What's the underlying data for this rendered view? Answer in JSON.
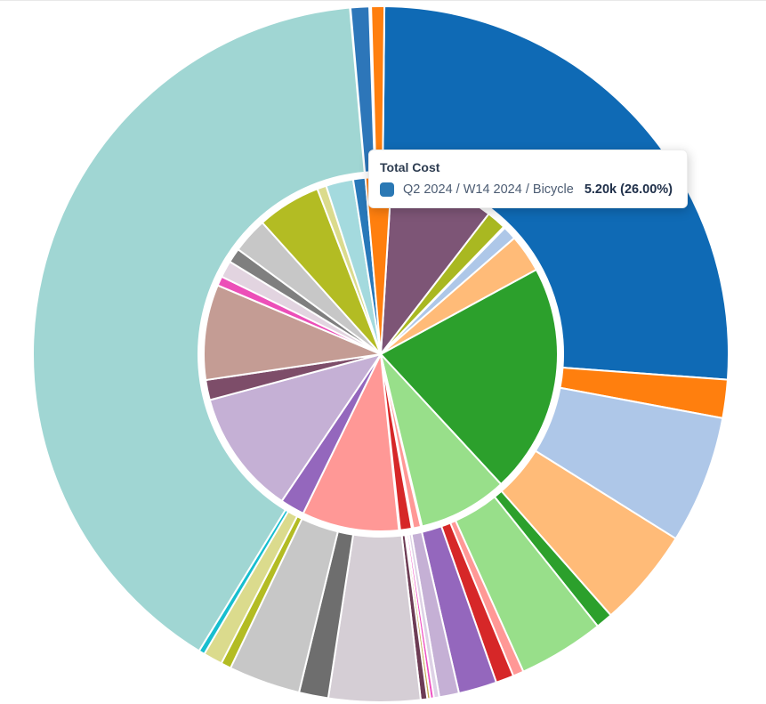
{
  "tooltip": {
    "title": "Total Cost",
    "series_path": "Q2 2024 / W14 2024 / Bicycle",
    "value_text": "5.20k (26.00%)",
    "swatch_color": "#2a78b4"
  },
  "chart_data": {
    "type": "pie",
    "subtype": "sunburst-two-ring",
    "title": "Total Cost",
    "legend": "none",
    "data_labels": "none",
    "hovered_segment": {
      "ring": "outer",
      "id": "bicycle-q2-w14",
      "path": "Q2 2024 / W14 2024 / Bicycle",
      "value": "5.20k",
      "percent": "26.00%"
    },
    "angle_convention": "degrees clockwise from 12 o'clock",
    "rings": {
      "outer": {
        "segments": [
          {
            "id": "bicycle-q2-w14",
            "color": "#0f6ab5",
            "start_deg": 0.6,
            "end_deg": 94.2,
            "pct": 26.0
          },
          {
            "id": "outer-orange",
            "color": "#ff7f0e",
            "start_deg": 94.2,
            "end_deg": 100.6,
            "pct": 1.8
          },
          {
            "id": "outer-steel-blue",
            "color": "#aec7e8",
            "start_deg": 100.6,
            "end_deg": 122.0,
            "pct": 5.9
          },
          {
            "id": "outer-peach",
            "color": "#ffbb78",
            "start_deg": 122.0,
            "end_deg": 138.6,
            "pct": 4.6
          },
          {
            "id": "outer-green",
            "color": "#2ca02c",
            "start_deg": 138.6,
            "end_deg": 141.4,
            "pct": 0.8
          },
          {
            "id": "outer-light-green",
            "color": "#98df8a",
            "start_deg": 141.4,
            "end_deg": 155.8,
            "pct": 4.0
          },
          {
            "id": "outer-pink",
            "color": "#ff9896",
            "start_deg": 155.8,
            "end_deg": 157.6,
            "pct": 0.5
          },
          {
            "id": "outer-red",
            "color": "#d62728",
            "start_deg": 157.6,
            "end_deg": 160.6,
            "pct": 0.8
          },
          {
            "id": "outer-purple",
            "color": "#9467bd",
            "start_deg": 160.6,
            "end_deg": 167.0,
            "pct": 1.8
          },
          {
            "id": "outer-lavender",
            "color": "#c5b0d5",
            "start_deg": 167.0,
            "end_deg": 170.3,
            "pct": 0.9
          },
          {
            "id": "outer-pale-lavender",
            "color": "#ded2e6",
            "start_deg": 170.3,
            "end_deg": 171.2,
            "pct": 0.25
          },
          {
            "id": "outer-magenta",
            "color": "#ef51c3",
            "start_deg": 171.2,
            "end_deg": 171.8,
            "pct": 0.17
          },
          {
            "id": "outer-tan",
            "color": "#c4a94e",
            "start_deg": 171.8,
            "end_deg": 172.3,
            "pct": 0.14
          },
          {
            "id": "outer-maroon",
            "color": "#6d3c55",
            "start_deg": 172.3,
            "end_deg": 173.4,
            "pct": 0.3
          },
          {
            "id": "outer-pale-gray",
            "color": "#d5ced5",
            "start_deg": 173.4,
            "end_deg": 188.7,
            "pct": 4.25
          },
          {
            "id": "outer-dark-gray",
            "color": "#6e6e6e",
            "start_deg": 188.7,
            "end_deg": 193.6,
            "pct": 1.4
          },
          {
            "id": "outer-light-gray",
            "color": "#c7c7c7",
            "start_deg": 193.6,
            "end_deg": 205.6,
            "pct": 3.3
          },
          {
            "id": "outer-olive",
            "color": "#b3bc23",
            "start_deg": 205.6,
            "end_deg": 207.3,
            "pct": 0.5
          },
          {
            "id": "outer-pale-olive",
            "color": "#dbdb8d",
            "start_deg": 207.3,
            "end_deg": 210.5,
            "pct": 0.9
          },
          {
            "id": "outer-cyan",
            "color": "#17becf",
            "start_deg": 210.5,
            "end_deg": 211.5,
            "pct": 0.3
          },
          {
            "id": "outer-teal-large",
            "color": "#a0d6d3",
            "start_deg": 211.5,
            "end_deg": 354.9,
            "pct": 39.8
          },
          {
            "id": "outer-blue-sliver",
            "color": "#2d76b9",
            "start_deg": 355.0,
            "end_deg": 358.1,
            "pct": 0.9
          },
          {
            "id": "outer-orange-sliver",
            "color": "#ff7f0e",
            "start_deg": 358.4,
            "end_deg": 360.6,
            "pct": 0.6
          }
        ]
      },
      "inner": {
        "segments": [
          {
            "id": "inner-plum-large",
            "color": "#7d5576",
            "start_deg": 3.5,
            "end_deg": 37.6,
            "pct": 9.5
          },
          {
            "id": "inner-olive",
            "color": "#a9b821",
            "start_deg": 37.6,
            "end_deg": 44.0,
            "pct": 1.8
          },
          {
            "id": "inner-steel-blue",
            "color": "#aec7e8",
            "start_deg": 44.5,
            "end_deg": 49.0,
            "pct": 1.25
          },
          {
            "id": "inner-peach",
            "color": "#ffbb78",
            "start_deg": 49.0,
            "end_deg": 61.5,
            "pct": 3.5
          },
          {
            "id": "inner-green-large",
            "color": "#2ca02c",
            "start_deg": 61.5,
            "end_deg": 137.2,
            "pct": 21.0
          },
          {
            "id": "inner-light-green",
            "color": "#98df8a",
            "start_deg": 137.2,
            "end_deg": 166.5,
            "pct": 8.1
          },
          {
            "id": "inner-pink-sliver",
            "color": "#ff9896",
            "start_deg": 166.9,
            "end_deg": 169.4,
            "pct": 0.7
          },
          {
            "id": "inner-red-sliver",
            "color": "#d62728",
            "start_deg": 169.9,
            "end_deg": 173.7,
            "pct": 1.1
          },
          {
            "id": "inner-salmon",
            "color": "#ff9896",
            "start_deg": 174.1,
            "end_deg": 206.0,
            "pct": 8.9
          },
          {
            "id": "inner-purple",
            "color": "#9467bd",
            "start_deg": 206.0,
            "end_deg": 214.0,
            "pct": 2.2
          },
          {
            "id": "inner-lavender",
            "color": "#c5b0d5",
            "start_deg": 214.0,
            "end_deg": 255.0,
            "pct": 11.4
          },
          {
            "id": "inner-dark-plum",
            "color": "#7d4d69",
            "start_deg": 255.0,
            "end_deg": 261.6,
            "pct": 1.8
          },
          {
            "id": "inner-rosy-brown",
            "color": "#c49c94",
            "start_deg": 261.6,
            "end_deg": 292.9,
            "pct": 8.7
          },
          {
            "id": "inner-magenta",
            "color": "#ec4fb8",
            "start_deg": 292.9,
            "end_deg": 296.0,
            "pct": 0.9
          },
          {
            "id": "inner-pale-pink",
            "color": "#e2d4e0",
            "start_deg": 296.0,
            "end_deg": 301.5,
            "pct": 1.5
          },
          {
            "id": "inner-dark-gray",
            "color": "#7f7f7f",
            "start_deg": 301.5,
            "end_deg": 306.3,
            "pct": 1.3
          },
          {
            "id": "inner-light-gray",
            "color": "#c7c7c7",
            "start_deg": 306.3,
            "end_deg": 318.0,
            "pct": 3.25
          },
          {
            "id": "inner-olive-large",
            "color": "#b3bc23",
            "start_deg": 318.0,
            "end_deg": 339.0,
            "pct": 5.8
          },
          {
            "id": "inner-pale-yellow",
            "color": "#dbdb8d",
            "start_deg": 339.0,
            "end_deg": 342.0,
            "pct": 0.8
          },
          {
            "id": "inner-light-teal",
            "color": "#a4dade",
            "start_deg": 342.0,
            "end_deg": 351.0,
            "pct": 2.5
          },
          {
            "id": "inner-blue-sliver",
            "color": "#2878b9",
            "start_deg": 351.0,
            "end_deg": 355.0,
            "pct": 1.1
          },
          {
            "id": "inner-orange",
            "color": "#ff7f0e",
            "start_deg": 355.0,
            "end_deg": 363.5,
            "pct": 2.4
          }
        ]
      }
    }
  }
}
